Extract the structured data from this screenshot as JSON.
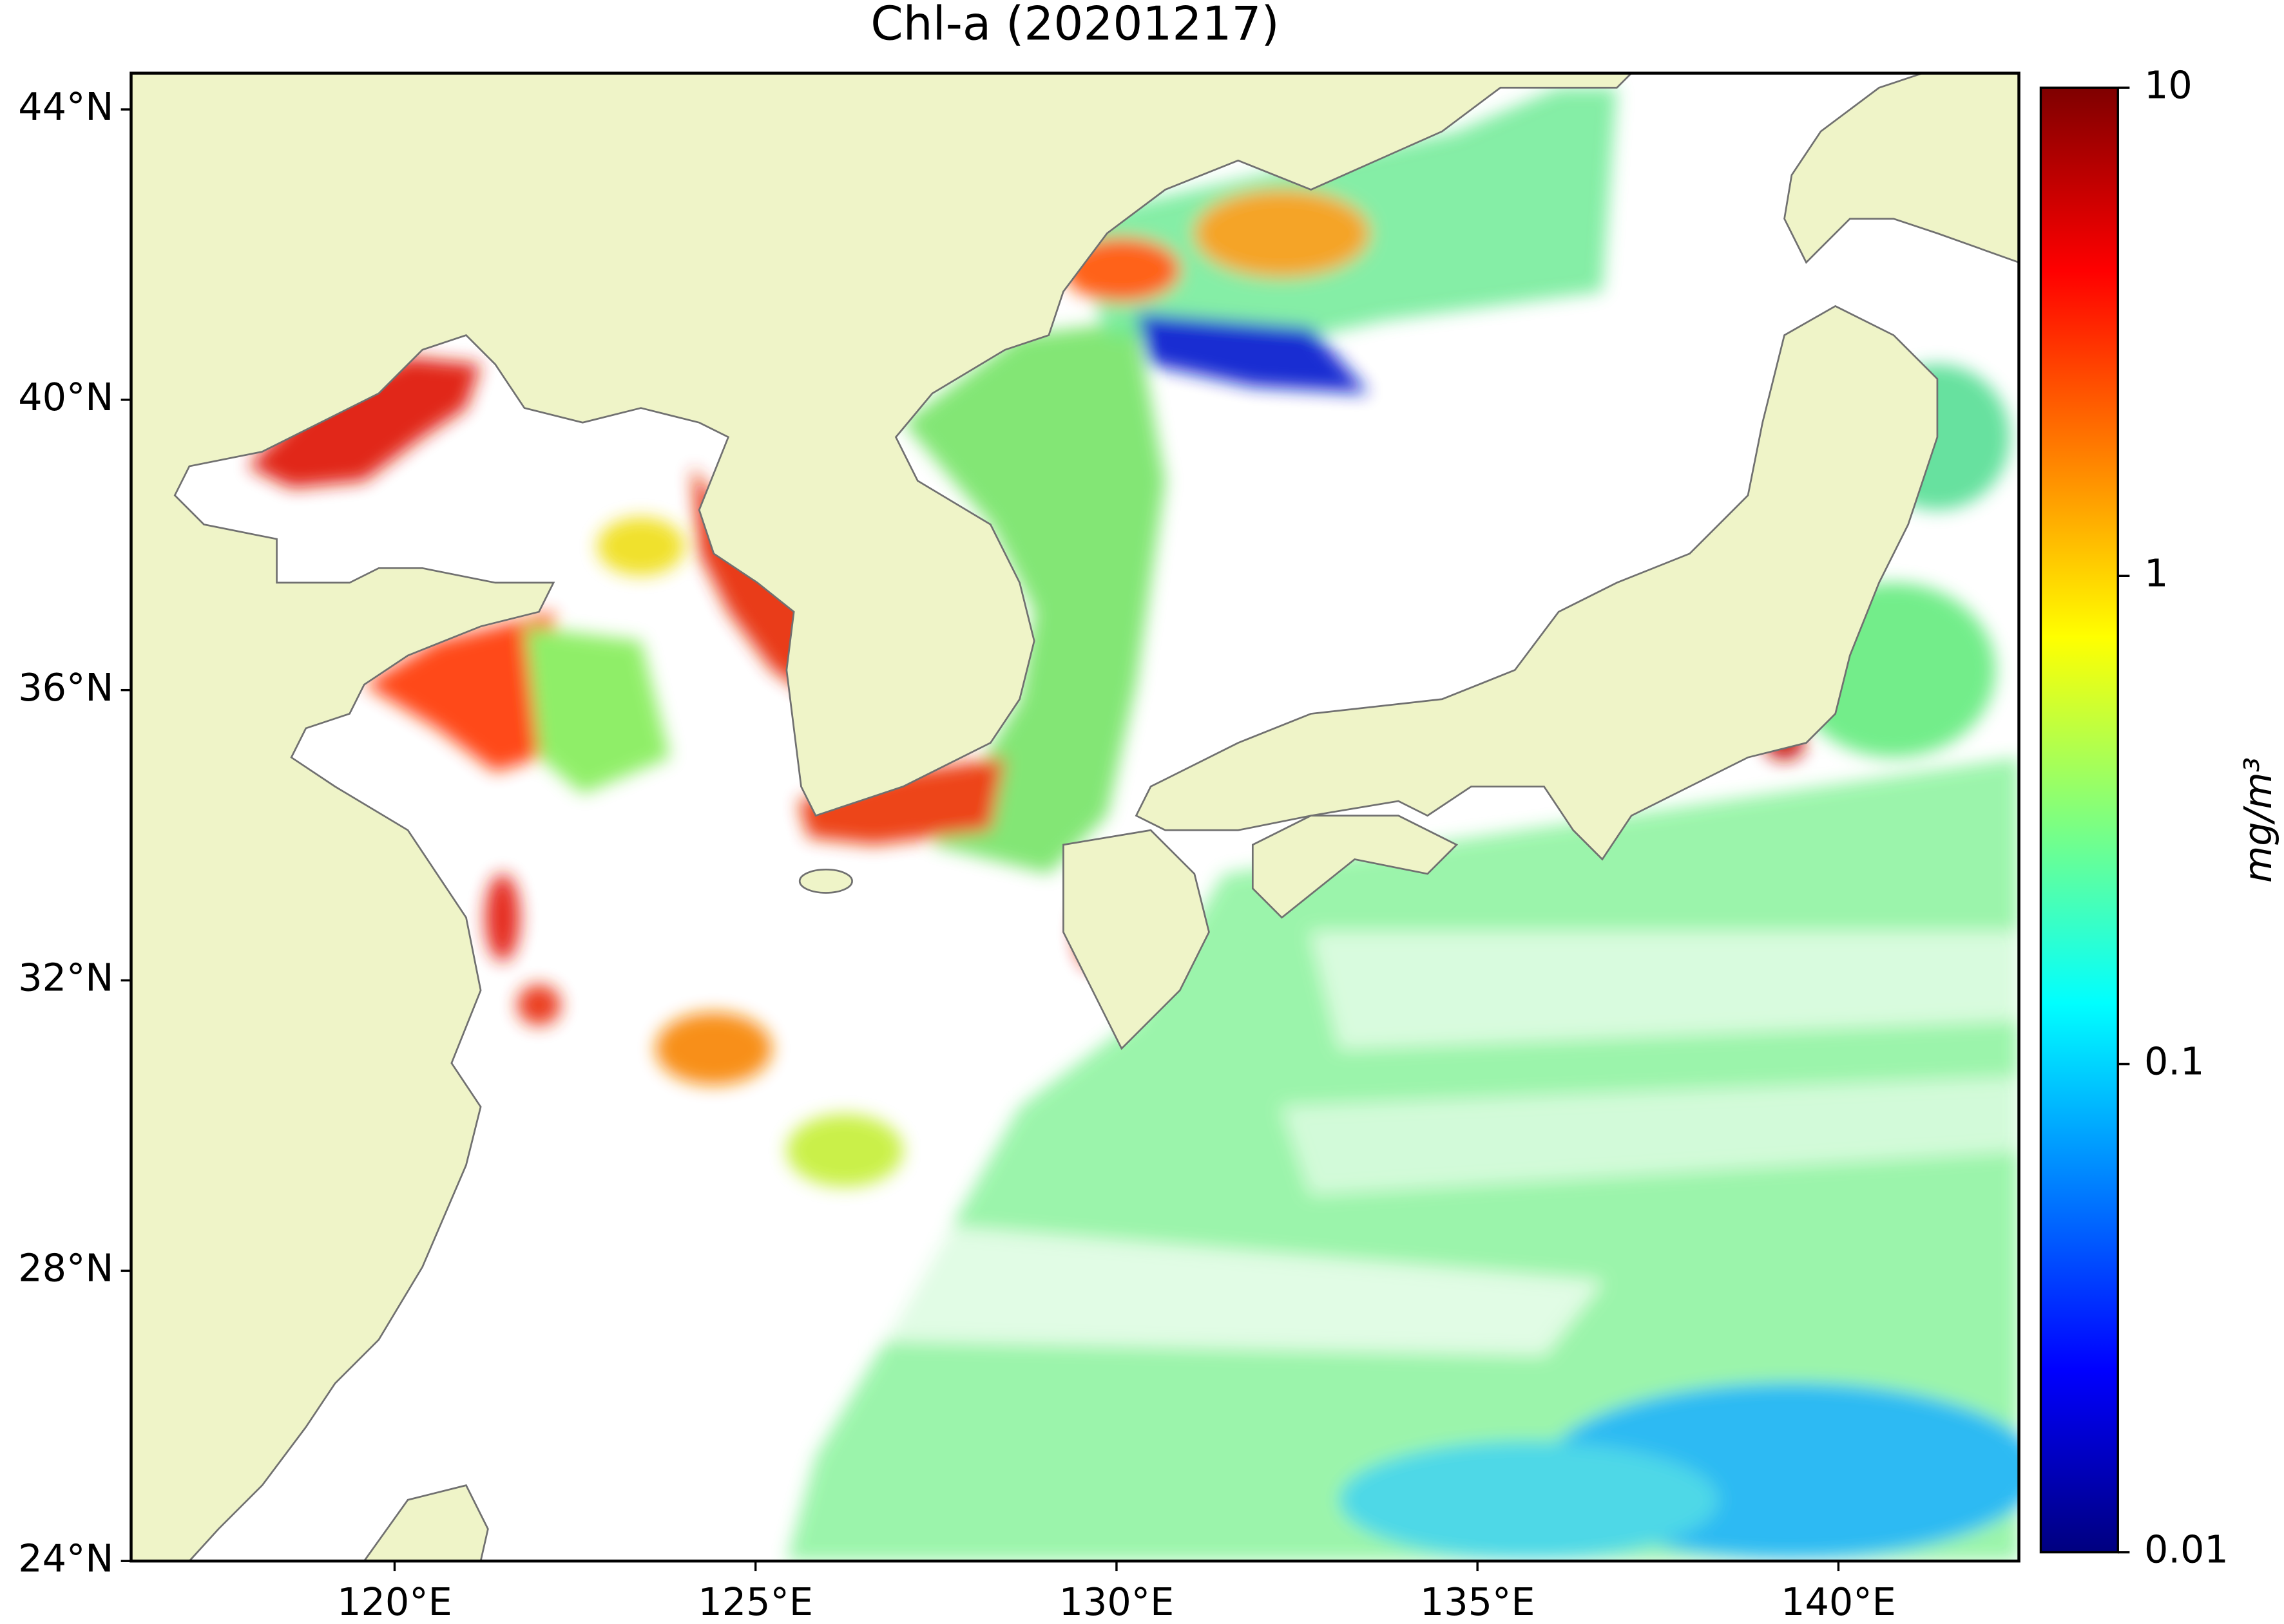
{
  "chart_data": {
    "type": "map",
    "title": "Chl-a (20201217)",
    "xlim": [
      116.35,
      142.5
    ],
    "ylim": [
      24,
      44.5
    ],
    "xticks": [
      {
        "value": 120,
        "label": "120°E"
      },
      {
        "value": 125,
        "label": "125°E"
      },
      {
        "value": 130,
        "label": "130°E"
      },
      {
        "value": 135,
        "label": "135°E"
      },
      {
        "value": 140,
        "label": "140°E"
      }
    ],
    "yticks": [
      {
        "value": 24,
        "label": "24°N"
      },
      {
        "value": 28,
        "label": "28°N"
      },
      {
        "value": 32,
        "label": "32°N"
      },
      {
        "value": 36,
        "label": "36°N"
      },
      {
        "value": 40,
        "label": "40°N"
      },
      {
        "value": 44,
        "label": "44°N"
      }
    ],
    "land_color": "#eff4c8",
    "colorbar": {
      "label": "mg/m³",
      "scale": "log",
      "lim": [
        0.01,
        10
      ],
      "ticks": [
        0.01,
        0.1,
        1,
        10
      ],
      "colors": [
        "#00007f",
        "#0000ff",
        "#007fff",
        "#00ffff",
        "#7fff7f",
        "#ffff00",
        "#ff7f00",
        "#ff0000",
        "#7f0000"
      ]
    }
  }
}
